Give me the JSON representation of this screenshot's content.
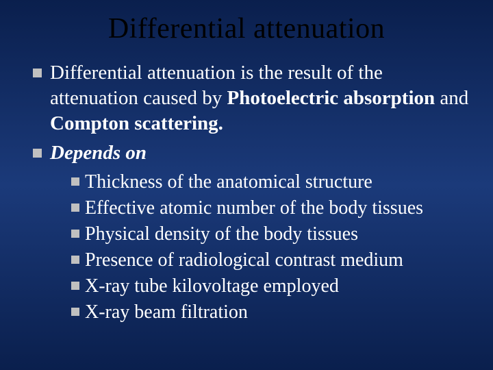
{
  "slide": {
    "background_gradient": [
      "#0a1f4d",
      "#1b3a7a",
      "#0a1f4d"
    ],
    "bullet_color": "#c0c0c0",
    "title_color": "#000000",
    "text_color": "#ffffff",
    "font_family": "Times New Roman",
    "title": "Differential attenuation",
    "title_fontsize": 42,
    "body_fontsize_l1": 29,
    "body_fontsize_l2": 28,
    "b1_part1": "Differential attenuation is the result of the attenuation caused by ",
    "b1_bold1": "Photoelectric absorption",
    "b1_part2": " and ",
    "b1_bold2": "Compton scattering.",
    "b2_italic": "Depends on",
    "sub1": "Thickness of the anatomical structure",
    "sub2": "Effective atomic number of the body tissues",
    "sub3": "Physical density of the body tissues",
    "sub4": "Presence of radiological contrast medium",
    "sub5": "X-ray tube kilovoltage employed",
    "sub6": "X-ray beam filtration"
  }
}
